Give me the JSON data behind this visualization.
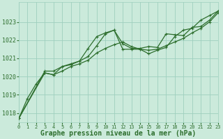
{
  "title": "Graphe pression niveau de la mer (hPa)",
  "bg_color": "#cbeadb",
  "grid_color": "#9ecfbe",
  "line_color": "#2d6e2d",
  "xlim": [
    0,
    23
  ],
  "ylim": [
    1017.5,
    1024.1
  ],
  "yticks": [
    1018,
    1019,
    1020,
    1021,
    1022,
    1023
  ],
  "xticks": [
    0,
    1,
    2,
    3,
    4,
    5,
    6,
    7,
    8,
    9,
    10,
    11,
    12,
    13,
    14,
    15,
    16,
    17,
    18,
    19,
    20,
    21,
    22,
    23
  ],
  "line1_x": [
    0,
    1,
    2,
    3,
    4,
    5,
    6,
    7,
    8,
    9,
    10,
    11,
    12,
    13,
    14,
    15,
    16,
    17,
    18,
    19,
    20,
    21,
    22,
    23
  ],
  "line1_y": [
    1017.7,
    1018.8,
    1019.6,
    1020.2,
    1020.1,
    1020.3,
    1020.55,
    1020.7,
    1020.9,
    1021.3,
    1021.55,
    1021.75,
    1021.9,
    1021.65,
    1021.5,
    1021.45,
    1021.5,
    1021.7,
    1021.9,
    1022.1,
    1022.4,
    1022.65,
    1023.0,
    1023.5
  ],
  "line2_x": [
    0,
    3,
    4,
    5,
    6,
    7,
    8,
    9,
    10,
    11,
    12,
    13,
    14,
    15,
    16,
    17,
    18,
    19,
    20,
    21,
    22,
    23
  ],
  "line2_y": [
    1017.7,
    1020.2,
    1020.1,
    1020.55,
    1020.65,
    1020.85,
    1021.55,
    1022.2,
    1022.4,
    1022.55,
    1021.5,
    1021.5,
    1021.5,
    1021.25,
    1021.45,
    1021.6,
    1022.2,
    1022.55,
    1022.65,
    1023.1,
    1023.35,
    1023.6
  ],
  "line3_x": [
    0,
    3,
    4,
    5,
    6,
    7,
    8,
    9,
    10,
    11,
    12,
    13,
    14,
    15,
    16,
    17,
    18,
    19,
    20,
    21,
    22,
    23
  ],
  "line3_y": [
    1017.7,
    1020.3,
    1020.3,
    1020.55,
    1020.7,
    1020.85,
    1021.1,
    1021.7,
    1022.35,
    1022.55,
    1021.8,
    1021.55,
    1021.55,
    1021.65,
    1021.6,
    1022.35,
    1022.3,
    1022.25,
    1022.7,
    1022.75,
    1023.1,
    1023.6
  ],
  "ytick_fontsize": 6,
  "xtick_fontsize": 5,
  "xlabel_fontsize": 7,
  "lw": 0.9,
  "ms": 2.5
}
